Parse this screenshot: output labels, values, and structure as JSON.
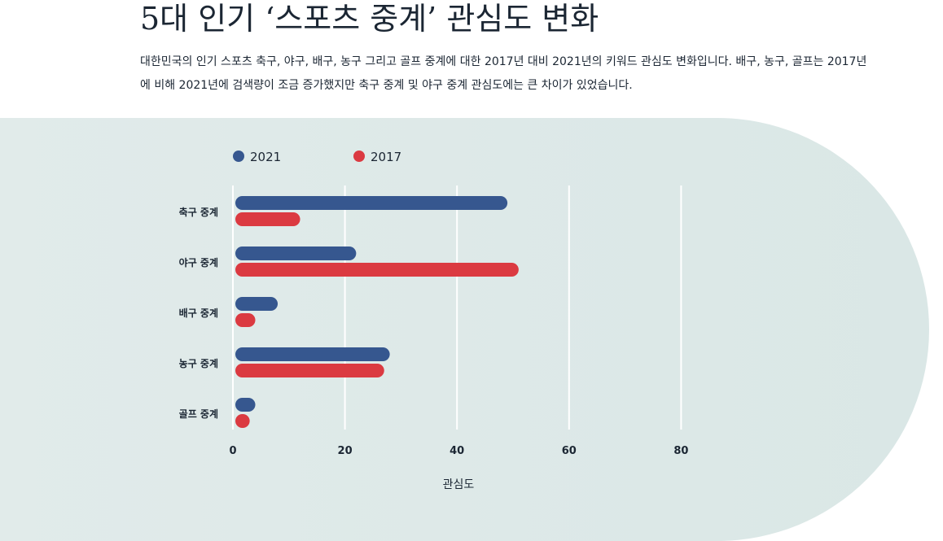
{
  "header": {
    "title": "5대 인기 ‘스포츠 중계’ 관심도 변화",
    "description": "대한민국의 인기 스포츠 축구, 야구, 배구, 농구 그리고 골프 중계에 대한 2017년 대비 2021년의 키워드 관심도 변화입니다. 배구, 농구, 골프는 2017년에 비해 2021년에 검색량이 조금 증가했지만 축구 중계 및 야구 중계 관심도에는 큰 차이가 있었습니다."
  },
  "colors": {
    "s2021": "#36578f",
    "s2017": "#db3a41",
    "background": "#dde8e7",
    "grid": "#ffffff"
  },
  "chart_data": {
    "type": "bar",
    "orientation": "horizontal",
    "categories": [
      "축구 중계",
      "야구 중계",
      "배구 중계",
      "농구 중계",
      "골프 중계"
    ],
    "series": [
      {
        "name": "2021",
        "values": [
          49,
          22,
          8,
          28,
          4
        ]
      },
      {
        "name": "2017",
        "values": [
          12,
          51,
          4,
          27,
          3
        ]
      }
    ],
    "xlabel": "관심도",
    "xlim": [
      0,
      80
    ],
    "xticks": [
      "0",
      "20",
      "40",
      "60",
      "80"
    ],
    "grid": true,
    "legend": "top-left"
  }
}
